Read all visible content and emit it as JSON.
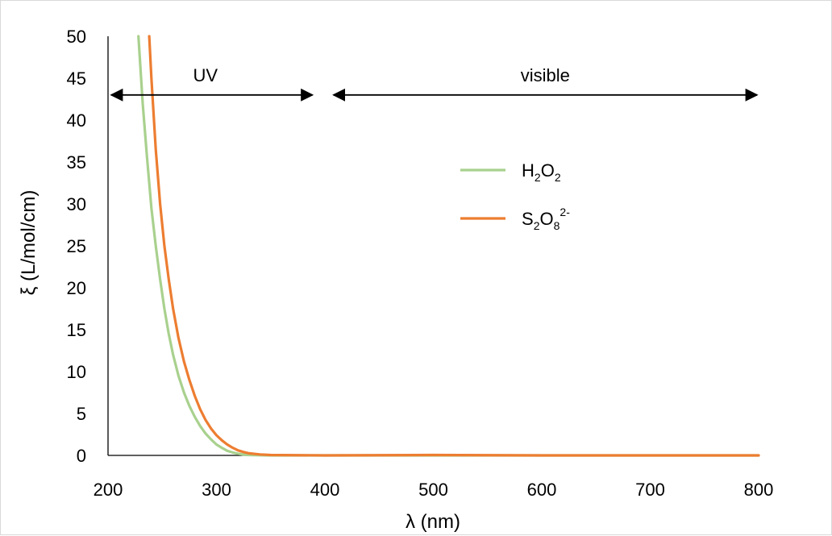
{
  "chart_data": {
    "type": "line",
    "title": "",
    "xlabel": "λ (nm)",
    "ylabel": "ξ (L/mol/cm)",
    "xlim": [
      200,
      800
    ],
    "ylim": [
      0,
      50
    ],
    "xticks": [
      200,
      300,
      400,
      500,
      600,
      700,
      800
    ],
    "yticks": [
      0,
      5,
      10,
      15,
      20,
      25,
      30,
      35,
      40,
      45,
      50
    ],
    "grid": false,
    "legend_position": "right-center",
    "annotations": [
      {
        "label": "UV",
        "x_range": [
          200,
          390
        ],
        "y": 43
      },
      {
        "label": "visible",
        "x_range": [
          405,
          800
        ],
        "y": 43
      }
    ],
    "series": [
      {
        "name": "H2O2",
        "legend_label": {
          "parts": [
            [
              "H",
              "n"
            ],
            [
              "2",
              "sub"
            ],
            [
              "O",
              "n"
            ],
            [
              "2",
              "sub"
            ]
          ]
        },
        "color": "#a9d18e",
        "x": [
          228,
          232,
          236,
          240,
          244,
          248,
          252,
          256,
          260,
          265,
          270,
          275,
          280,
          285,
          290,
          295,
          300,
          305,
          310,
          315,
          320,
          325,
          330,
          340,
          350,
          400,
          500,
          600,
          700,
          800
        ],
        "y": [
          50,
          42,
          35.5,
          29.5,
          25,
          21,
          17.5,
          14.5,
          12,
          9.5,
          7.5,
          5.9,
          4.6,
          3.5,
          2.6,
          1.9,
          1.3,
          0.9,
          0.55,
          0.35,
          0.2,
          0.1,
          0.05,
          0.02,
          0,
          0,
          0,
          0,
          0,
          0
        ]
      },
      {
        "name": "S2O8 2-",
        "legend_label": {
          "parts": [
            [
              "S",
              "n"
            ],
            [
              "2",
              "sub"
            ],
            [
              "O",
              "n"
            ],
            [
              "8",
              "sub"
            ],
            [
              "2-",
              "sup"
            ]
          ]
        },
        "color": "#ed7d31",
        "x": [
          238,
          240,
          244,
          248,
          252,
          256,
          260,
          265,
          270,
          275,
          280,
          285,
          290,
          295,
          300,
          305,
          310,
          315,
          320,
          325,
          330,
          340,
          350,
          400,
          500,
          600,
          700,
          800
        ],
        "y": [
          50,
          45,
          36.5,
          30,
          25,
          21,
          17.5,
          14,
          11.2,
          9,
          7.1,
          5.5,
          4.2,
          3.2,
          2.4,
          1.8,
          1.3,
          0.9,
          0.6,
          0.4,
          0.25,
          0.12,
          0.05,
          0,
          0.05,
          0,
          0,
          0
        ]
      }
    ]
  }
}
